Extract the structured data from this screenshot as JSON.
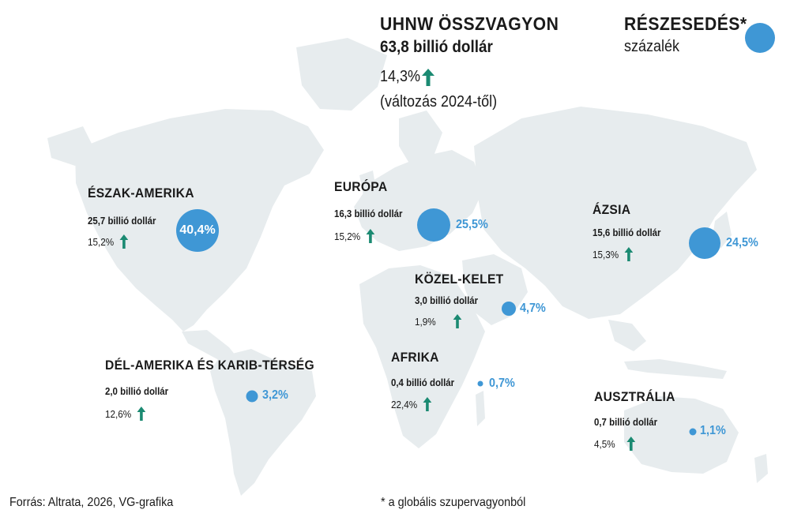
{
  "header": {
    "title": "UHNW ÖSSZVAGYON",
    "total": "63,8 billió dollár",
    "change": "14,3%",
    "change_note": "(változás 2024-től)"
  },
  "legend": {
    "title": "RÉSZESEDÉS*",
    "unit": "százalék"
  },
  "colors": {
    "bubble": "#3f97d5",
    "arrow": "#1b8a72",
    "land": "#e7ecee"
  },
  "regions": [
    {
      "name": "ÉSZAK-AMERIKA",
      "wealth": "25,7 billió dollár",
      "change": "15,2%",
      "share": "40,4%"
    },
    {
      "name": "EURÓPA",
      "wealth": "16,3 billió dollár",
      "change": "15,2%",
      "share": "25,5%"
    },
    {
      "name": "ÁZSIA",
      "wealth": "15,6 billió dollár",
      "change": "15,3%",
      "share": "24,5%"
    },
    {
      "name": "KÖZEL-KELET",
      "wealth": "3,0 billió dollár",
      "change": "1,9%",
      "share": "4,7%"
    },
    {
      "name": "AFRIKA",
      "wealth": "0,4 billió dollár",
      "change": "22,4%",
      "share": "0,7%"
    },
    {
      "name": "DÉL-AMERIKA ÉS KARIB-TÉRSÉG",
      "wealth": "2,0 billió dollár",
      "change": "12,6%",
      "share": "3,2%"
    },
    {
      "name": "AUSZTRÁLIA",
      "wealth": "0,7 billió dollár",
      "change": "4,5%",
      "share": "1,1%"
    }
  ],
  "footer": {
    "source": "Forrás: Altrata, 2026, VG-grafika",
    "note": "* a globális szupervagyonból"
  }
}
